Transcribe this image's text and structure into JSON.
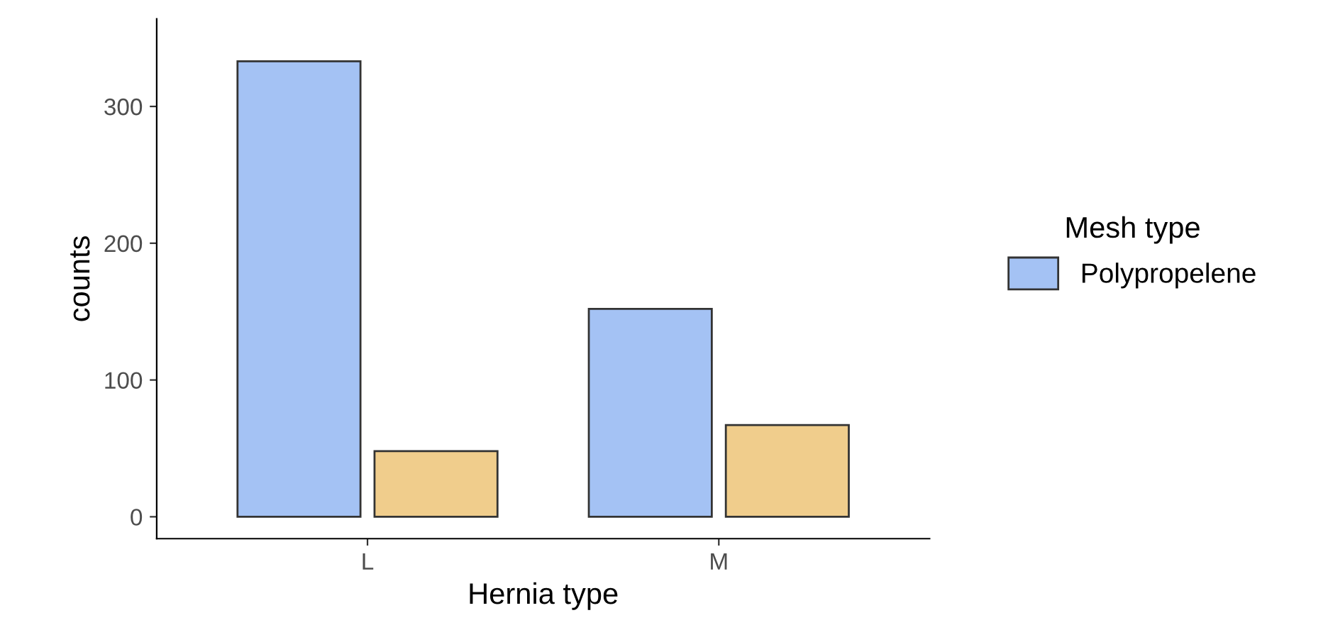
{
  "chart_data": {
    "type": "bar",
    "xlabel": "Hernia type",
    "ylabel": "counts",
    "legend_title": "Mesh type",
    "categories": [
      "L",
      "M"
    ],
    "series": [
      {
        "name": "Polypropelene",
        "color": "#a4c2f4",
        "values": [
          333,
          152
        ]
      },
      {
        "color": "#f0cd8c",
        "values": [
          48,
          67
        ]
      }
    ],
    "ylim": [
      -16,
      364
    ],
    "yticks": [
      0,
      100,
      200,
      300
    ],
    "grid": false,
    "legend": "right"
  }
}
